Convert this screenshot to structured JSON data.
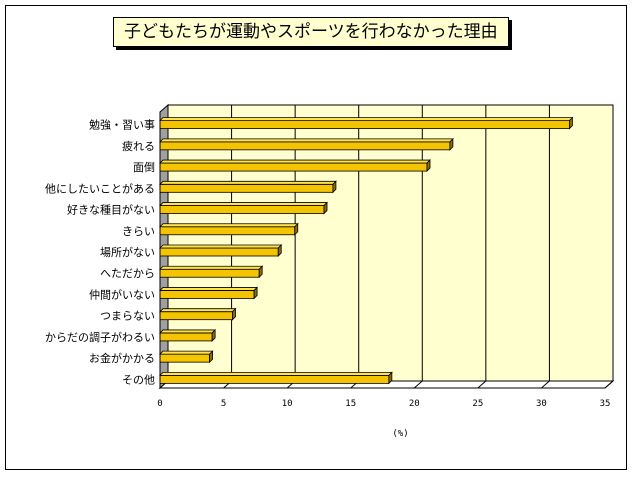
{
  "chart_data": {
    "type": "bar",
    "orientation": "horizontal",
    "title": "子どもたちが運動やスポーツを行わなかった理由",
    "xlabel": "(%)",
    "ylabel": "",
    "xlim": [
      0,
      35
    ],
    "xticks": [
      0,
      5,
      10,
      15,
      20,
      25,
      30,
      35
    ],
    "grid": true,
    "categories": [
      "勉強・習い事",
      "疲れる",
      "面倒",
      "他にしたいことがある",
      "好きな種目がない",
      "きらい",
      "場所がない",
      "へただから",
      "仲間がいない",
      "つまらない",
      "からだの調子がわるい",
      "お金がかかる",
      "その他"
    ],
    "values": [
      32.2,
      22.8,
      21.0,
      13.6,
      12.9,
      10.6,
      9.3,
      7.8,
      7.4,
      5.7,
      4.1,
      3.9,
      18.0
    ],
    "colors": {
      "bar": "#f5c400",
      "bar_top": "#ffe34d",
      "bar_side": "#8a6d00",
      "plot_bg": "#ffffd0",
      "wall": "#a0a0a0"
    }
  }
}
